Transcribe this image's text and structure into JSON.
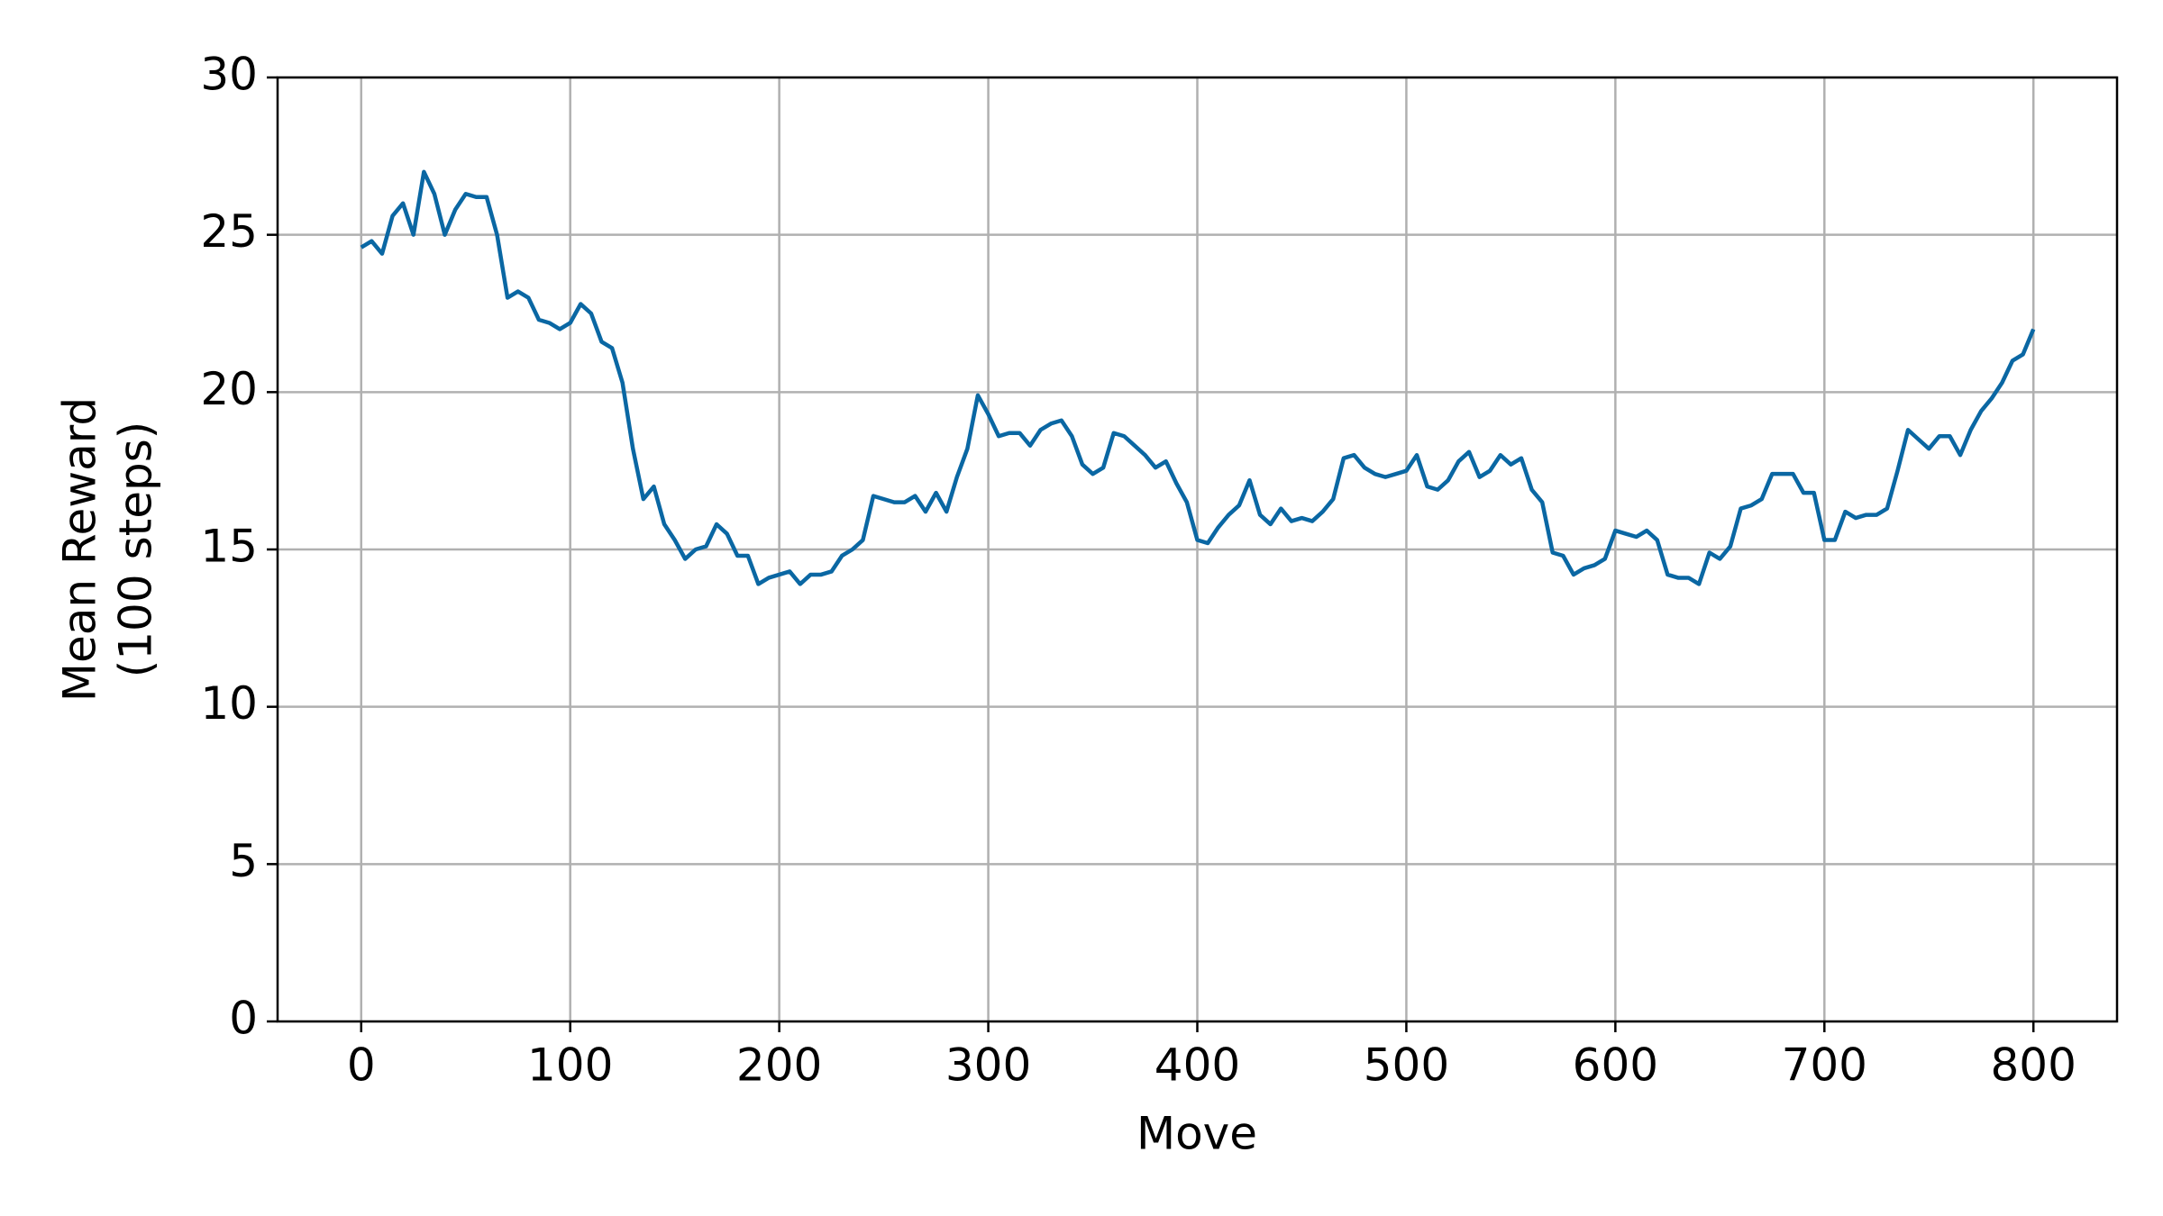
{
  "chart_data": {
    "type": "line",
    "xlabel": "Move",
    "ylabel": [
      "Mean Reward",
      "(100 steps)"
    ],
    "xlim": [
      -40,
      840
    ],
    "ylim": [
      0,
      30
    ],
    "xticks": [
      0,
      100,
      200,
      300,
      400,
      500,
      600,
      700,
      800
    ],
    "yticks": [
      0,
      5,
      10,
      15,
      20,
      25,
      30
    ],
    "grid": true,
    "x": [
      0,
      5,
      10,
      15,
      20,
      25,
      30,
      35,
      40,
      45,
      50,
      55,
      60,
      65,
      70,
      75,
      80,
      85,
      90,
      95,
      100,
      105,
      110,
      115,
      120,
      125,
      130,
      135,
      140,
      145,
      150,
      155,
      160,
      165,
      170,
      175,
      180,
      185,
      190,
      195,
      200,
      205,
      210,
      215,
      220,
      225,
      230,
      235,
      240,
      245,
      250,
      255,
      260,
      265,
      270,
      275,
      280,
      285,
      290,
      295,
      300,
      305,
      310,
      315,
      320,
      325,
      330,
      335,
      340,
      345,
      350,
      355,
      360,
      365,
      370,
      375,
      380,
      385,
      390,
      395,
      400,
      405,
      410,
      415,
      420,
      425,
      430,
      435,
      440,
      445,
      450,
      455,
      460,
      465,
      470,
      475,
      480,
      485,
      490,
      495,
      500,
      505,
      510,
      515,
      520,
      525,
      530,
      535,
      540,
      545,
      550,
      555,
      560,
      565,
      570,
      575,
      580,
      585,
      590,
      595,
      600,
      605,
      610,
      615,
      620,
      625,
      630,
      635,
      640,
      645,
      650,
      655,
      660,
      665,
      670,
      675,
      680,
      685,
      690,
      695,
      700,
      705,
      710,
      715,
      720,
      725,
      730,
      735,
      740,
      745,
      750,
      755,
      760,
      765,
      770,
      775,
      780,
      785,
      790,
      795,
      800
    ],
    "series": [
      {
        "color": "#0a67a3",
        "values": [
          24.6,
          24.8,
          24.4,
          25.6,
          26.0,
          25.0,
          27.0,
          26.3,
          25.0,
          25.8,
          26.3,
          26.2,
          26.2,
          25.0,
          23.0,
          23.2,
          23.0,
          22.3,
          22.2,
          22.0,
          22.2,
          22.8,
          22.5,
          21.6,
          21.4,
          20.3,
          18.2,
          16.6,
          17.0,
          15.8,
          15.3,
          14.7,
          15.0,
          15.1,
          15.8,
          15.5,
          14.8,
          14.8,
          13.9,
          14.1,
          14.2,
          14.3,
          13.9,
          14.2,
          14.2,
          14.3,
          14.8,
          15.0,
          15.3,
          16.7,
          16.6,
          16.5,
          16.5,
          16.7,
          16.2,
          16.8,
          16.2,
          17.3,
          18.2,
          19.9,
          19.3,
          18.6,
          18.7,
          18.7,
          18.3,
          18.8,
          19.0,
          19.1,
          18.6,
          17.7,
          17.4,
          17.6,
          18.7,
          18.6,
          18.3,
          18.0,
          17.6,
          17.8,
          17.1,
          16.5,
          15.3,
          15.2,
          15.7,
          16.1,
          16.4,
          17.2,
          16.1,
          15.8,
          16.3,
          15.9,
          16.0,
          15.9,
          16.2,
          16.6,
          17.9,
          18.0,
          17.6,
          17.4,
          17.3,
          17.4,
          17.5,
          18.0,
          17.0,
          16.9,
          17.2,
          17.8,
          18.1,
          17.3,
          17.5,
          18.0,
          17.7,
          17.9,
          16.9,
          16.5,
          14.9,
          14.8,
          14.2,
          14.4,
          14.5,
          14.7,
          15.6,
          15.5,
          15.4,
          15.6,
          15.3,
          14.2,
          14.1,
          14.1,
          13.9,
          14.9,
          14.7,
          15.1,
          16.3,
          16.4,
          16.6,
          17.4,
          17.4,
          17.4,
          16.8,
          16.8,
          15.3,
          15.3,
          16.2,
          16.0,
          16.1,
          16.1,
          16.3,
          17.5,
          18.8,
          18.5,
          18.2,
          18.6,
          18.6,
          18.0,
          18.8,
          19.4,
          19.8,
          20.3,
          21.0,
          21.2,
          22.0
        ]
      }
    ]
  }
}
